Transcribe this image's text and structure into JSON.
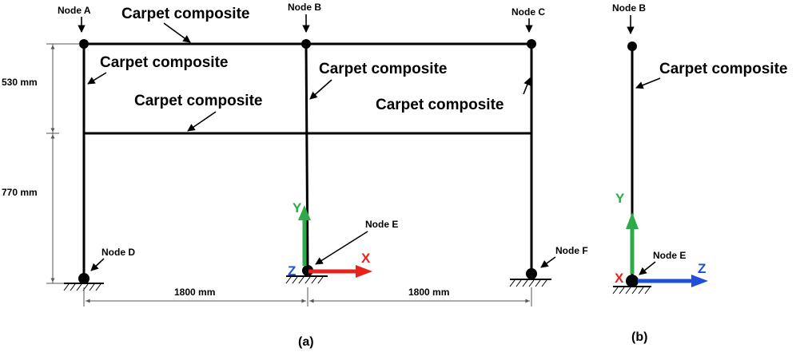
{
  "panel_a": {
    "nodes": {
      "a": "Node A",
      "b": "Node B",
      "c": "Node C",
      "d": "Node D",
      "e": "Node E",
      "f": "Node F"
    },
    "materials": {
      "top_beam": "Carpet composite",
      "left_column": "Carpet composite",
      "mid_beam": "Carpet composite",
      "center_column": "Carpet composite",
      "right_column": "Carpet composite"
    },
    "dimensions": {
      "upper_height": "530 mm",
      "lower_height": "770 mm",
      "left_span": "1800 mm",
      "right_span": "1800 mm"
    },
    "axes": {
      "y": "Y",
      "x": "X",
      "z": "Z"
    },
    "caption": "(a)"
  },
  "panel_b": {
    "nodes": {
      "b": "Node B",
      "e": "Node E"
    },
    "material": "Carpet composite",
    "axes": {
      "y": "Y",
      "x": "X",
      "z": "Z"
    },
    "caption": "(b)"
  },
  "colors": {
    "y_axis": "#2eaa4a",
    "x_axis": "#e8231e",
    "z_axis": "#1f4fd6"
  }
}
